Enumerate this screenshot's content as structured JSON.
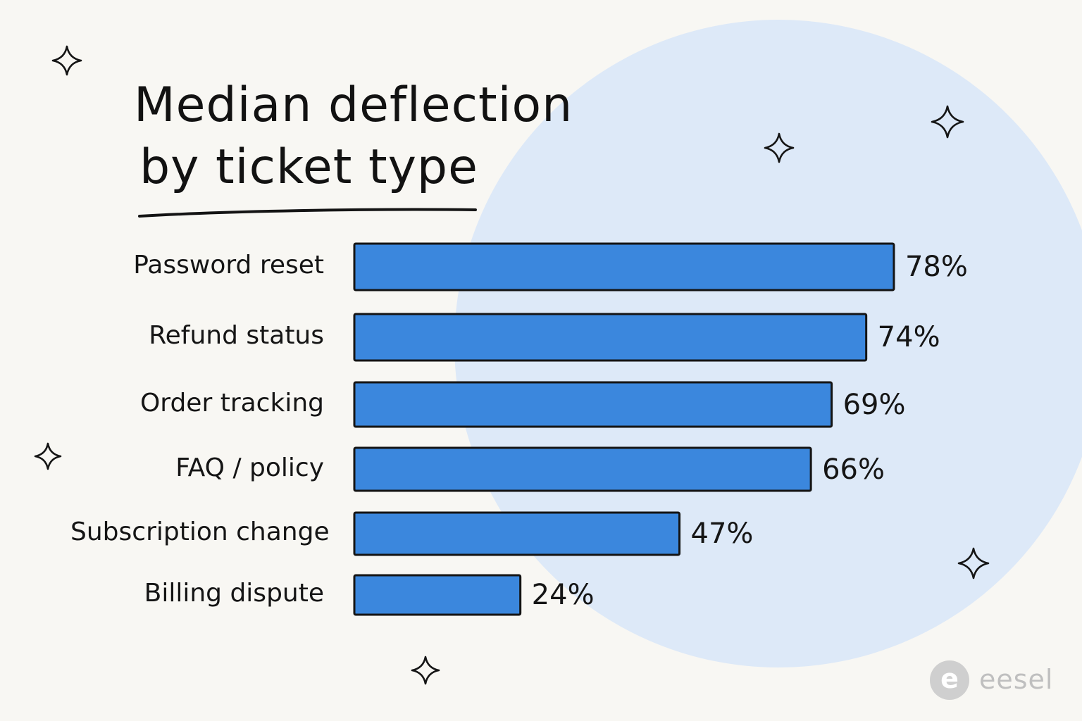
{
  "chart_data": {
    "type": "bar",
    "orientation": "horizontal",
    "title_lines": [
      "Median deflection",
      "by ticket type"
    ],
    "categories": [
      "Password reset",
      "Refund status",
      "Order tracking",
      "FAQ / policy",
      "Subscription change",
      "Billing dispute"
    ],
    "values": [
      78,
      74,
      69,
      66,
      47,
      24
    ],
    "value_labels": [
      "78%",
      "74%",
      "69%",
      "66%",
      "47%",
      "24%"
    ],
    "unit": "%",
    "xlim": [
      0,
      100
    ],
    "grid": false,
    "legend": "none"
  },
  "brand": {
    "mark_letter": "e",
    "name": "eesel"
  },
  "colors": {
    "background": "#f8f7f3",
    "bar_fill": "#3b87dd",
    "bar_stroke": "#141414",
    "circle": "#dde9f8",
    "sparkle": "#151515",
    "brand": "#cfcfcf"
  },
  "decorations": {
    "sparkle_icon": "four-point-star-icon",
    "background_shape": "light-blue-circle"
  }
}
